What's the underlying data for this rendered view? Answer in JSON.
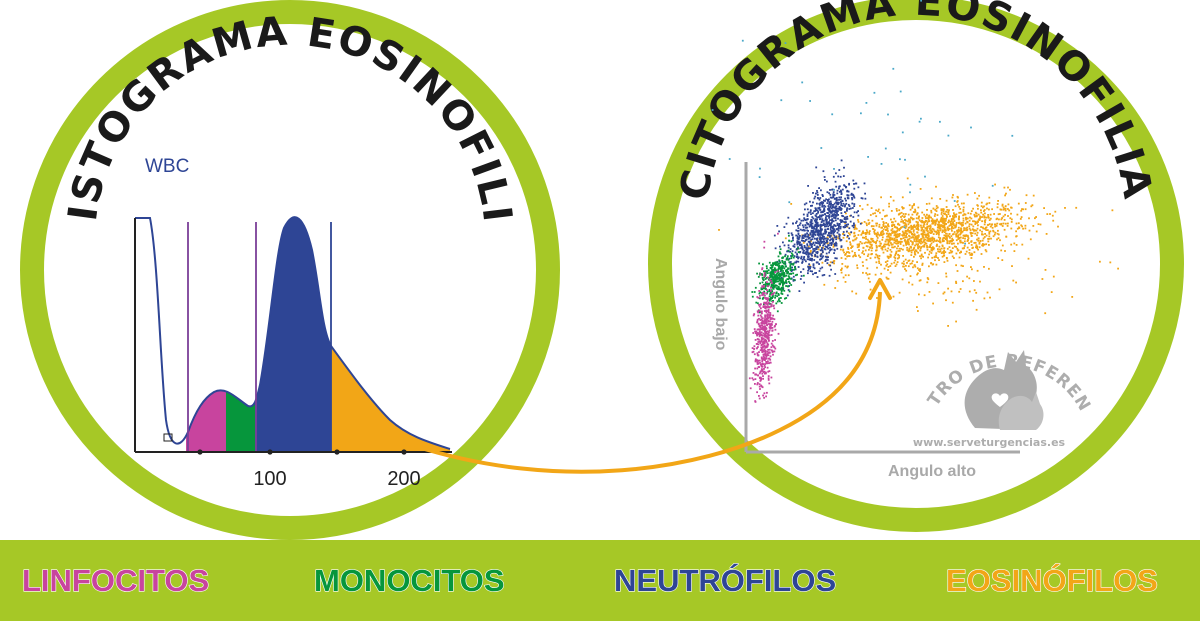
{
  "colors": {
    "ring": "#a6c826",
    "linfocitos": "#c8449e",
    "monocitos": "#06963c",
    "neutrofilos": "#2e4595",
    "eosinofilos": "#f2a617",
    "axis": "#a9a9a9",
    "divider": "#7b3f98"
  },
  "histogram": {
    "title": "HISTOGRAMA EOSINOFILIA",
    "label": "WBC",
    "ticks": [
      {
        "value": 100,
        "label": "100"
      },
      {
        "value": 200,
        "label": "200"
      }
    ]
  },
  "cytogram": {
    "title": "CITOGRAMA EOSINOFILIA",
    "ylabel": "Angulo bajo",
    "xlabel": "Angulo alto"
  },
  "watermark": {
    "arc_text": "CENTRO DE REFERENCIA",
    "url": "www.serveturgencias.es"
  },
  "legend": [
    {
      "key": "linfocitos",
      "label": "LINFOCITOS",
      "color": "#c8449e"
    },
    {
      "key": "monocitos",
      "label": "MONOCITOS",
      "color": "#06963c"
    },
    {
      "key": "neutrofilos",
      "label": "NEUTRÓFILOS",
      "color": "#2e4595"
    },
    {
      "key": "eosinofilos",
      "label": "EOSINÓFILOS",
      "color": "#f2a617"
    }
  ]
}
